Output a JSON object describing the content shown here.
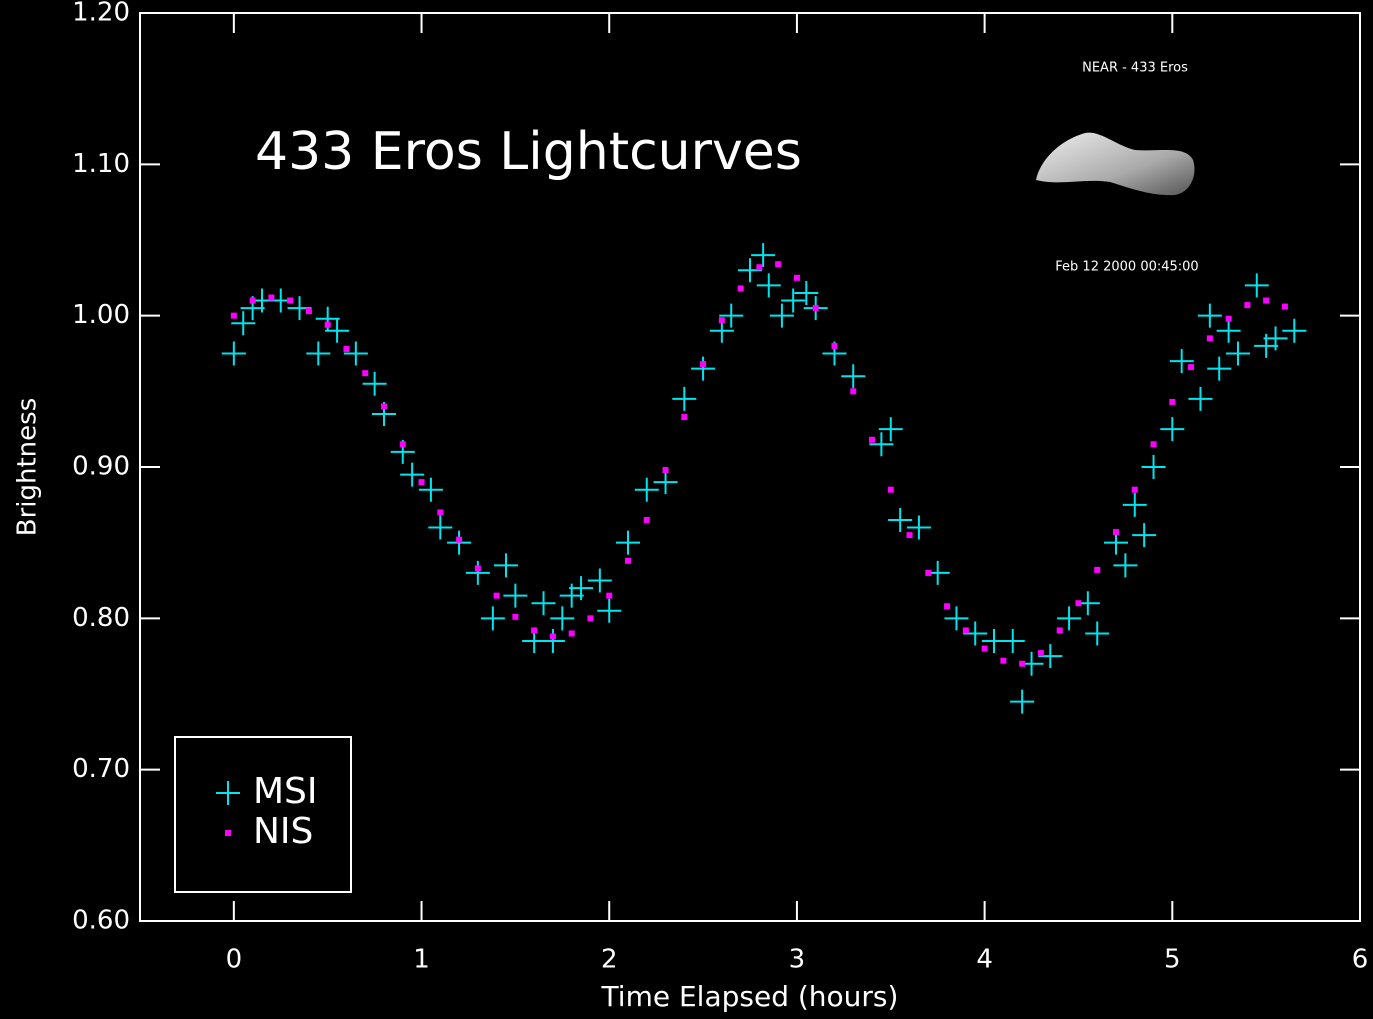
{
  "chart_data": {
    "type": "scatter",
    "title": "433 Eros Lightcurves",
    "annotations": [
      "NEAR - 433 Eros",
      "Feb 12 2000 00:45:00"
    ],
    "xlabel": "Time Elapsed (hours)",
    "ylabel": "Brightness",
    "xlim": [
      -0.5,
      6
    ],
    "ylim": [
      0.6,
      1.2
    ],
    "xticks": [
      0,
      1,
      2,
      3,
      4,
      5,
      6
    ],
    "yticks": [
      {
        "value": 0.6,
        "label": "0.60"
      },
      {
        "value": 0.7,
        "label": "0.70"
      },
      {
        "value": 0.8,
        "label": "0.80"
      },
      {
        "value": 0.9,
        "label": "0.90"
      },
      {
        "value": 1.0,
        "label": "1.00"
      },
      {
        "value": 1.1,
        "label": "1.10"
      },
      {
        "value": 1.2,
        "label": "1.20"
      }
    ],
    "legend": "lower left",
    "series": [
      {
        "name": "MSI",
        "color": "#00e5ee",
        "marker": "+",
        "x": [
          0.0,
          0.05,
          0.1,
          0.15,
          0.25,
          0.35,
          0.45,
          0.5,
          0.55,
          0.65,
          0.75,
          0.8,
          0.9,
          0.95,
          1.05,
          1.1,
          1.2,
          1.3,
          1.38,
          1.45,
          1.5,
          1.6,
          1.65,
          1.7,
          1.75,
          1.8,
          1.85,
          1.95,
          2.0,
          2.1,
          2.2,
          2.3,
          2.4,
          2.5,
          2.6,
          2.65,
          2.75,
          2.82,
          2.85,
          2.92,
          2.98,
          3.05,
          3.1,
          3.2,
          3.3,
          3.45,
          3.5,
          3.55,
          3.65,
          3.75,
          3.85,
          3.95,
          4.05,
          4.15,
          4.2,
          4.25,
          4.35,
          4.45,
          4.55,
          4.6,
          4.7,
          4.75,
          4.8,
          4.85,
          4.9,
          5.0,
          5.05,
          5.15,
          5.2,
          5.25,
          5.3,
          5.35,
          5.45,
          5.5,
          5.55,
          5.65
        ],
        "values": [
          0.975,
          0.995,
          1.005,
          1.01,
          1.01,
          1.005,
          0.975,
          0.998,
          0.99,
          0.975,
          0.955,
          0.935,
          0.91,
          0.895,
          0.885,
          0.86,
          0.85,
          0.83,
          0.8,
          0.835,
          0.815,
          0.785,
          0.81,
          0.785,
          0.8,
          0.815,
          0.82,
          0.825,
          0.805,
          0.85,
          0.885,
          0.89,
          0.945,
          0.965,
          0.99,
          1.0,
          1.03,
          1.04,
          1.02,
          1.0,
          1.01,
          1.015,
          1.005,
          0.975,
          0.96,
          0.915,
          0.925,
          0.865,
          0.86,
          0.83,
          0.8,
          0.79,
          0.785,
          0.785,
          0.745,
          0.77,
          0.775,
          0.8,
          0.81,
          0.79,
          0.85,
          0.835,
          0.875,
          0.855,
          0.9,
          0.925,
          0.97,
          0.945,
          1.0,
          0.965,
          0.99,
          0.975,
          1.02,
          0.98,
          0.985,
          0.99
        ]
      },
      {
        "name": "NIS",
        "color": "#ff00ff",
        "marker": "s",
        "x": [
          0.0,
          0.1,
          0.2,
          0.3,
          0.4,
          0.5,
          0.6,
          0.7,
          0.8,
          0.9,
          1.0,
          1.1,
          1.2,
          1.3,
          1.4,
          1.5,
          1.6,
          1.7,
          1.8,
          1.9,
          2.0,
          2.1,
          2.2,
          2.3,
          2.4,
          2.5,
          2.6,
          2.7,
          2.8,
          2.9,
          3.0,
          3.1,
          3.2,
          3.3,
          3.4,
          3.5,
          3.6,
          3.7,
          3.8,
          3.9,
          4.0,
          4.1,
          4.2,
          4.3,
          4.4,
          4.5,
          4.6,
          4.7,
          4.8,
          4.9,
          5.0,
          5.1,
          5.2,
          5.3,
          5.4,
          5.5,
          5.6
        ],
        "values": [
          1.0,
          1.01,
          1.012,
          1.01,
          1.003,
          0.994,
          0.978,
          0.962,
          0.94,
          0.915,
          0.89,
          0.87,
          0.852,
          0.833,
          0.815,
          0.801,
          0.792,
          0.788,
          0.79,
          0.8,
          0.815,
          0.838,
          0.865,
          0.898,
          0.933,
          0.968,
          0.997,
          1.018,
          1.032,
          1.034,
          1.025,
          1.005,
          0.98,
          0.95,
          0.918,
          0.885,
          0.855,
          0.83,
          0.808,
          0.792,
          0.78,
          0.772,
          0.77,
          0.777,
          0.792,
          0.81,
          0.832,
          0.857,
          0.885,
          0.915,
          0.943,
          0.966,
          0.985,
          0.998,
          1.007,
          1.01,
          1.006
        ]
      }
    ]
  }
}
